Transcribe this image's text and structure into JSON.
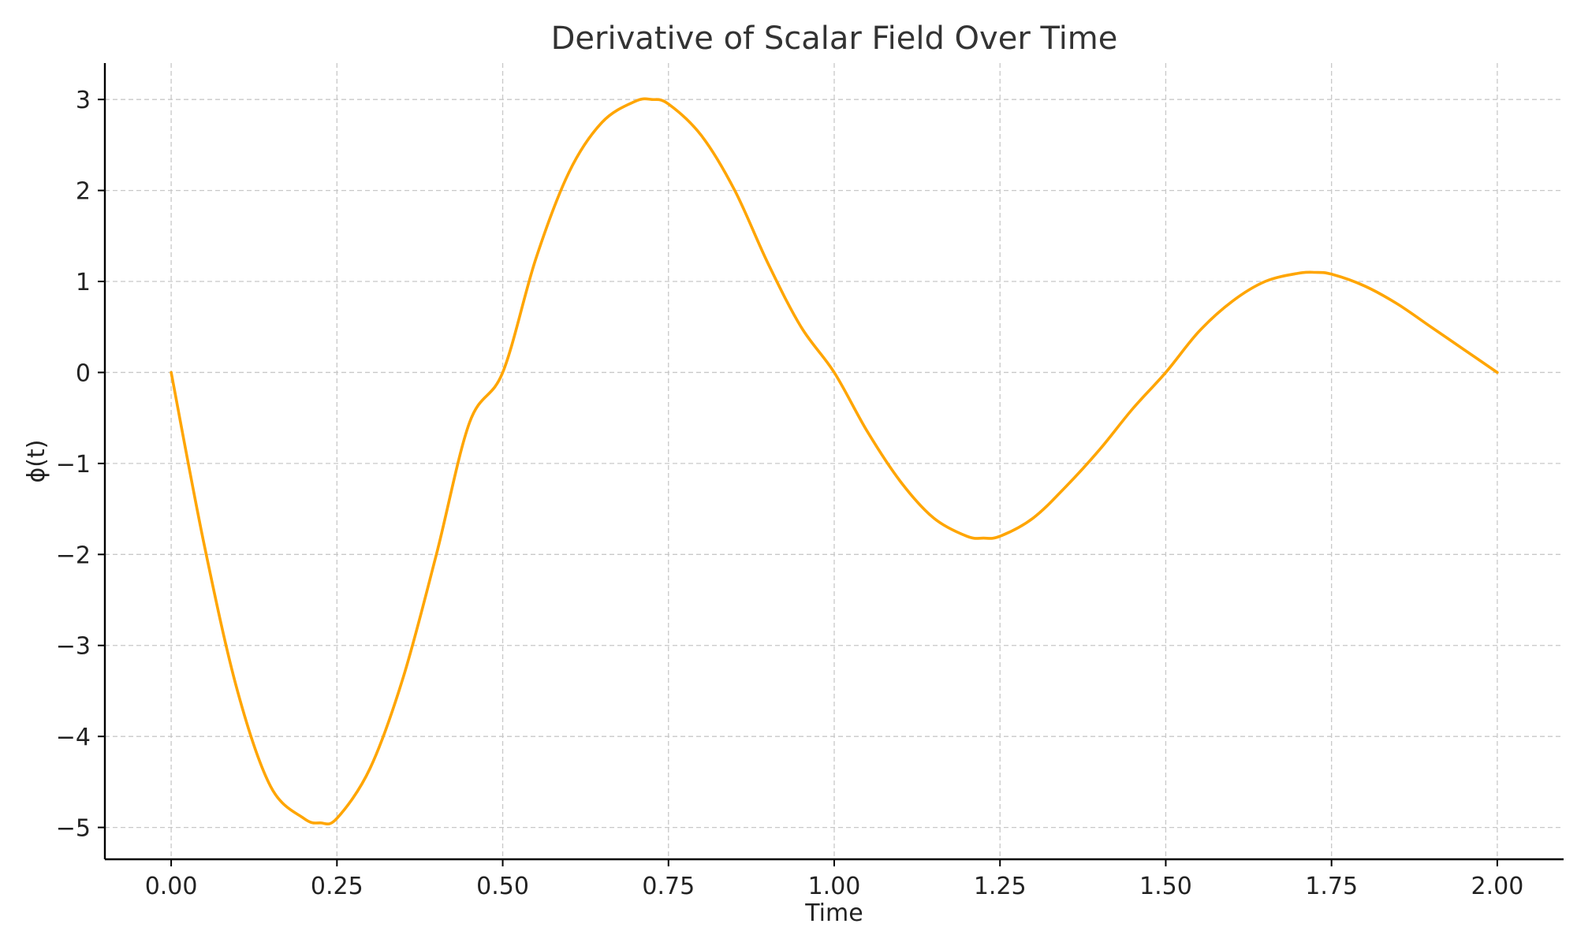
{
  "chart_data": {
    "type": "line",
    "title": "Derivative of Scalar Field Over Time",
    "xlabel": "Time",
    "ylabel": "ϕ(t)",
    "xlim": [
      -0.1,
      2.1
    ],
    "ylim": [
      -5.35,
      3.4
    ],
    "x_ticks": [
      0.0,
      0.25,
      0.5,
      0.75,
      1.0,
      1.25,
      1.5,
      1.75,
      2.0
    ],
    "x_tick_labels": [
      "0.00",
      "0.25",
      "0.50",
      "0.75",
      "1.00",
      "1.25",
      "1.50",
      "1.75",
      "2.00"
    ],
    "y_ticks": [
      -5,
      -4,
      -3,
      -2,
      -1,
      0,
      1,
      2,
      3
    ],
    "y_tick_labels": [
      "−5",
      "−4",
      "−3",
      "−2",
      "−1",
      "0",
      "1",
      "2",
      "3"
    ],
    "grid": true,
    "series": [
      {
        "color": "#FFA500",
        "x": [
          0.0,
          0.05,
          0.1,
          0.15,
          0.2,
          0.225,
          0.25,
          0.3,
          0.35,
          0.4,
          0.45,
          0.5,
          0.55,
          0.6,
          0.65,
          0.7,
          0.725,
          0.75,
          0.8,
          0.85,
          0.9,
          0.95,
          1.0,
          1.05,
          1.1,
          1.15,
          1.2,
          1.225,
          1.25,
          1.3,
          1.35,
          1.4,
          1.45,
          1.5,
          1.55,
          1.6,
          1.65,
          1.7,
          1.725,
          1.75,
          1.8,
          1.85,
          1.9,
          1.95,
          2.0
        ],
        "y": [
          0.0,
          -1.9,
          -3.5,
          -4.55,
          -4.9,
          -4.95,
          -4.9,
          -4.35,
          -3.35,
          -2.0,
          -0.55,
          0.0,
          1.25,
          2.2,
          2.75,
          2.98,
          3.0,
          2.95,
          2.6,
          2.0,
          1.2,
          0.5,
          0.0,
          -0.65,
          -1.2,
          -1.6,
          -1.8,
          -1.82,
          -1.8,
          -1.6,
          -1.25,
          -0.85,
          -0.4,
          0.0,
          0.45,
          0.78,
          1.0,
          1.09,
          1.1,
          1.08,
          0.95,
          0.75,
          0.5,
          0.25,
          0.0
        ]
      }
    ]
  }
}
